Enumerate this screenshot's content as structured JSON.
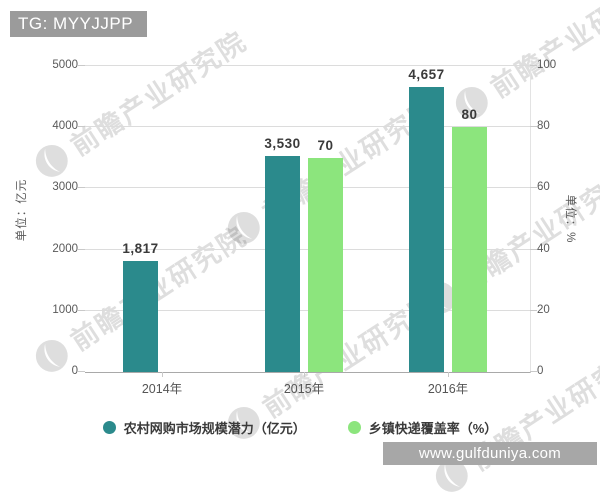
{
  "header": {
    "tag_label": "TG: MYYJJPP"
  },
  "watermark": {
    "brand_text": "前瞻产业研究院",
    "site_text": "www.gulfduniya.com"
  },
  "chart_data": {
    "type": "bar",
    "title": "",
    "categories": [
      "2014年",
      "2015年",
      "2016年"
    ],
    "series": [
      {
        "name": "农村网购市场规模潜力（亿元）",
        "axis": "left",
        "color": "#2b8a8c",
        "values": [
          1817,
          3530,
          4657
        ],
        "labels": [
          "1,817",
          "3,530",
          "4,657"
        ]
      },
      {
        "name": "乡镇快递覆盖率（%）",
        "axis": "right",
        "color": "#8ce57d",
        "values": [
          null,
          70,
          80
        ],
        "labels": [
          "",
          "70",
          "80"
        ]
      }
    ],
    "left_axis": {
      "label": "单位：亿元",
      "min": 0,
      "max": 5000,
      "step": 1000,
      "ticks": [
        "0",
        "1000",
        "2000",
        "3000",
        "4000",
        "5000"
      ]
    },
    "right_axis": {
      "label": "单位：%",
      "min": 0,
      "max": 100,
      "step": 20,
      "ticks": [
        "0",
        "20",
        "40",
        "60",
        "80",
        "100"
      ]
    },
    "grid": true,
    "legend_position": "bottom"
  }
}
